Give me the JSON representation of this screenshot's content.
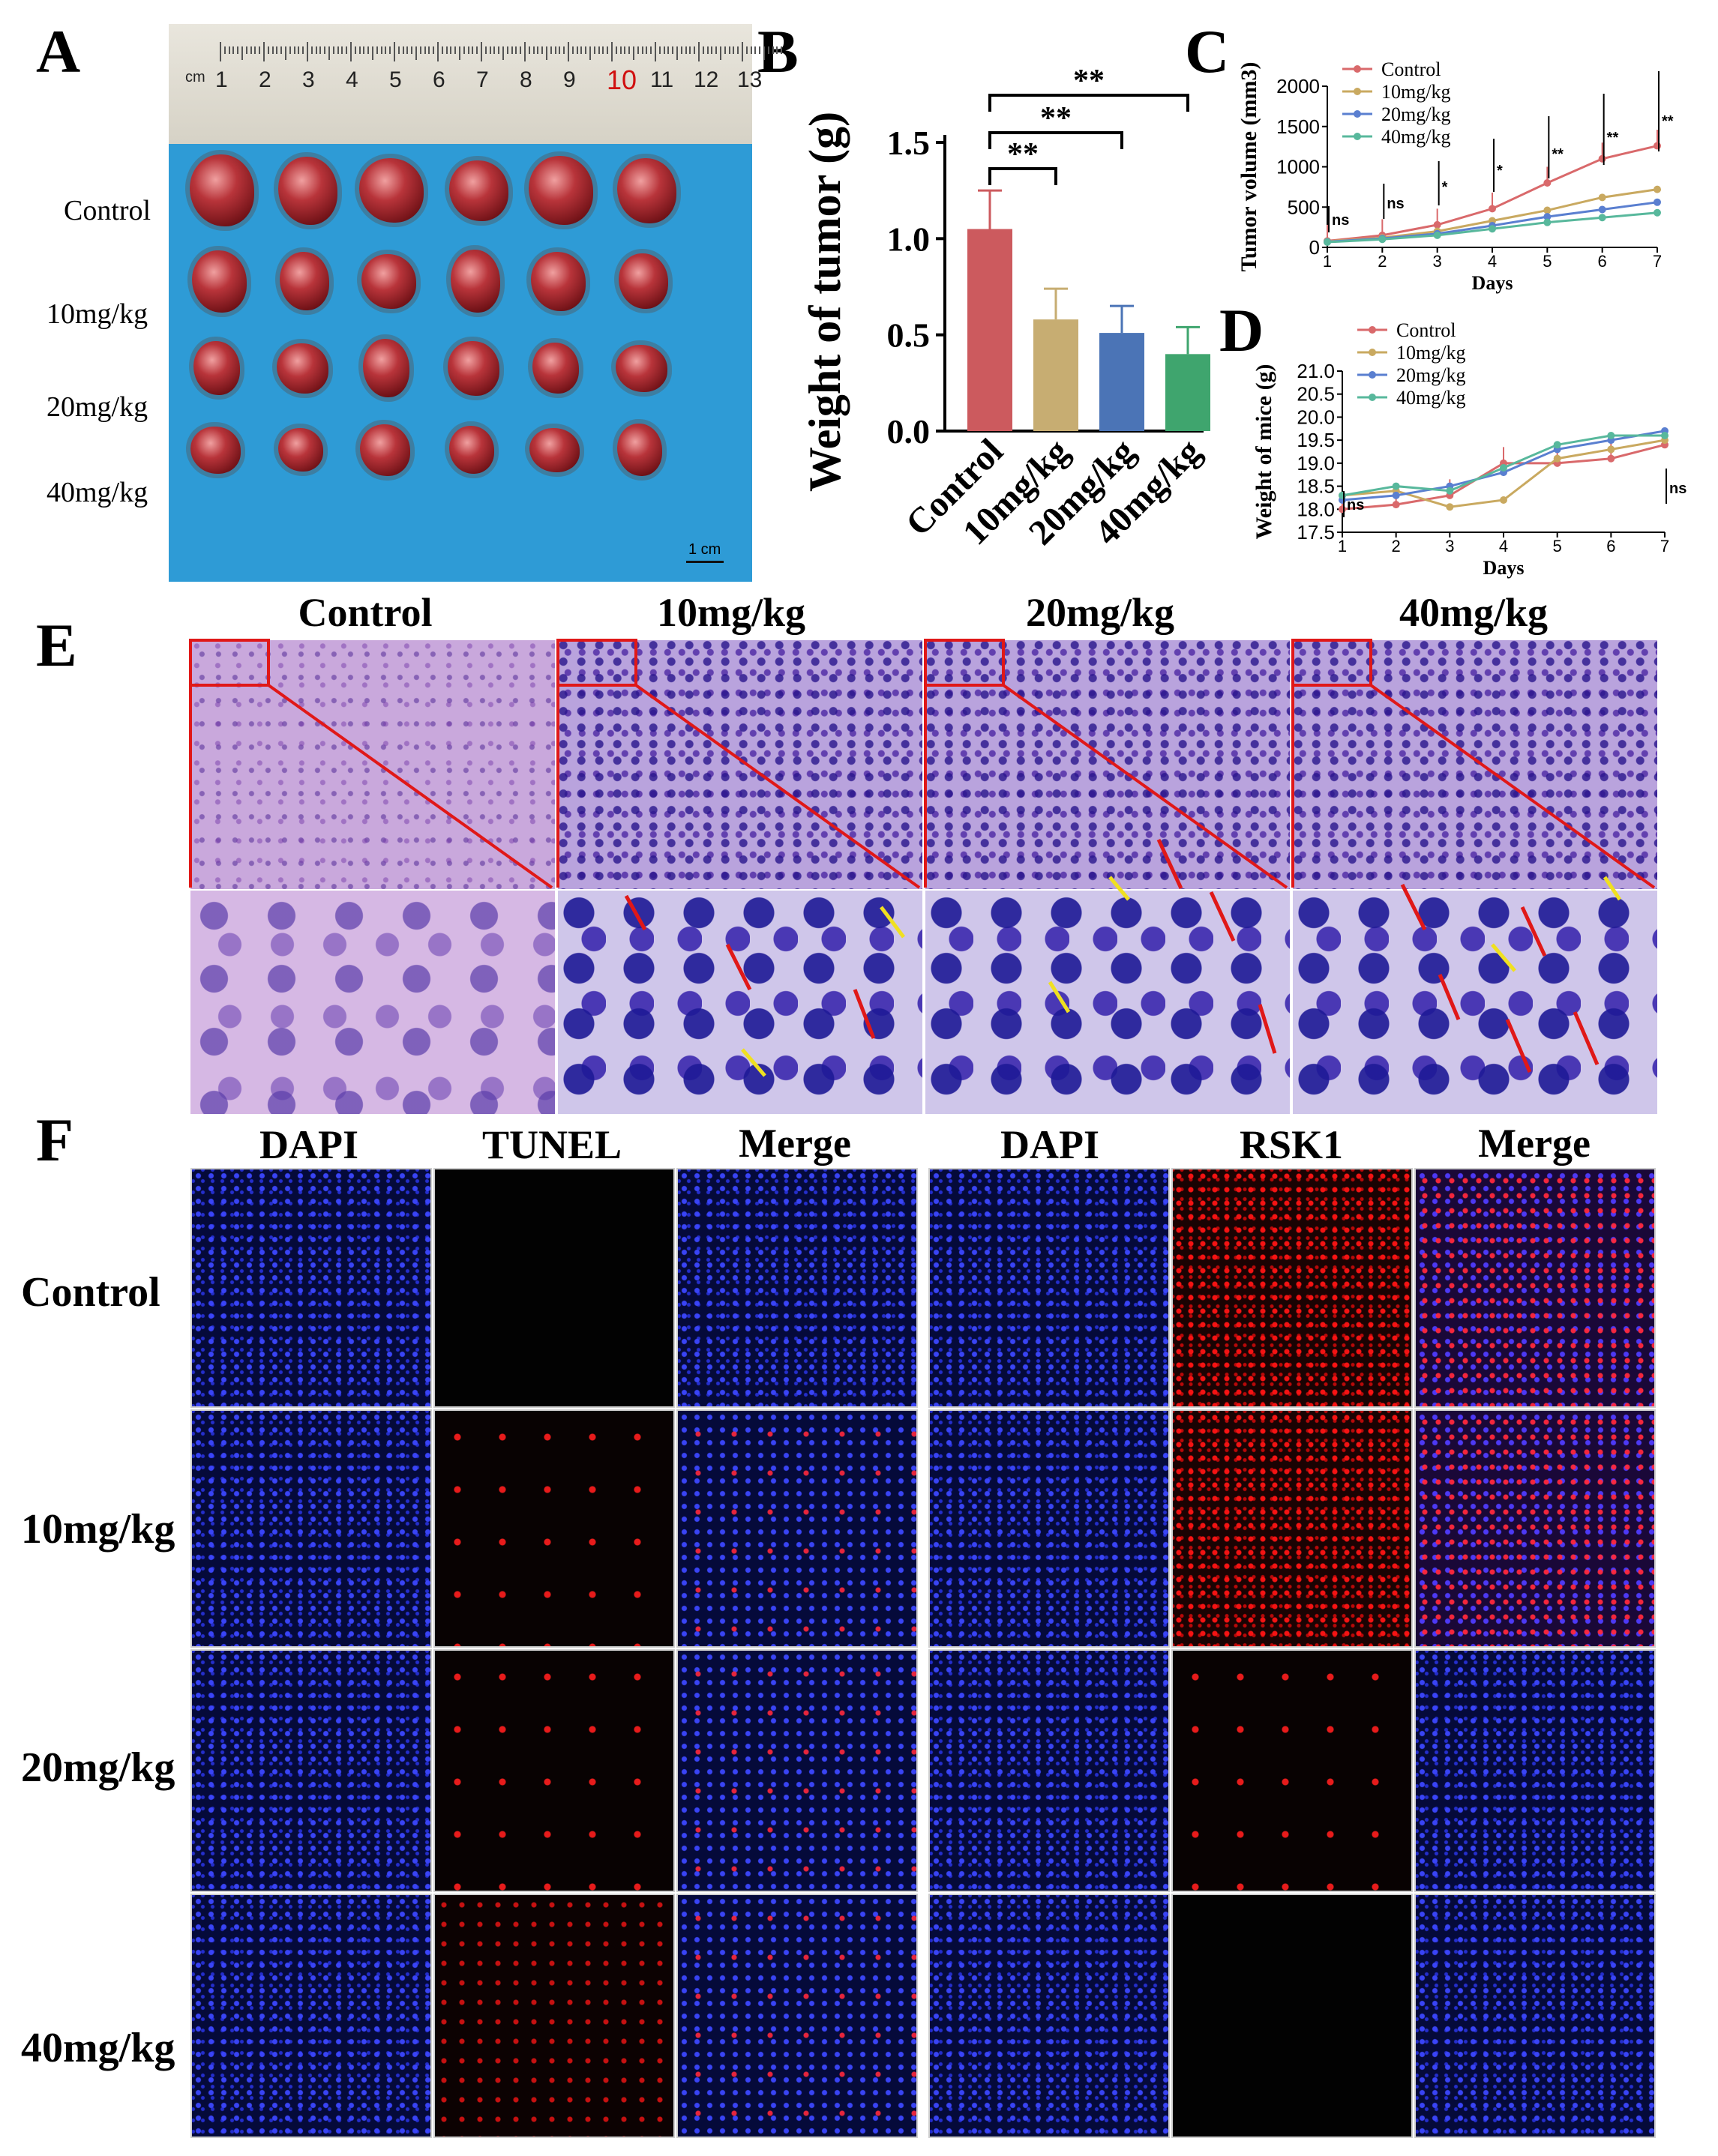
{
  "panel_letters": {
    "A": "A",
    "B": "B",
    "C": "C",
    "D": "D",
    "E": "E",
    "F": "F"
  },
  "panelA": {
    "ruler_cm_label": "cm",
    "ruler_numbers": [
      "1",
      "2",
      "3",
      "4",
      "5",
      "6",
      "7",
      "8",
      "9",
      "10",
      "11",
      "12",
      "13"
    ],
    "group_labels": [
      "Control",
      "10mg/kg",
      "20mg/kg",
      "40mg/kg"
    ],
    "scale_bar_label": "1 cm",
    "tumors_per_group": 6
  },
  "chart_data": [
    {
      "type": "bar",
      "panel": "B",
      "ylabel": "Weight of tumor (g)",
      "categories": [
        "Control",
        "10mg/kg",
        "20mg/kg",
        "40mg/kg"
      ],
      "values": [
        1.05,
        0.58,
        0.51,
        0.4
      ],
      "errors": [
        0.2,
        0.16,
        0.14,
        0.14
      ],
      "colors": [
        "#cc5a5e",
        "#c7ad72",
        "#4b74b6",
        "#3fa56e"
      ],
      "ylim": [
        0,
        1.5
      ],
      "yticks": [
        "0.0",
        "0.5",
        "1.0",
        "1.5"
      ],
      "significance": [
        "**",
        "**",
        "**"
      ]
    },
    {
      "type": "line",
      "panel": "C",
      "ylabel": "Tumor volume (mm3)",
      "xlabel": "Days",
      "x": [
        1,
        2,
        3,
        4,
        5,
        6,
        7
      ],
      "xticks": [
        "1",
        "2",
        "3",
        "4",
        "5",
        "6",
        "7"
      ],
      "yticks": [
        "0",
        "500",
        "1000",
        "1500",
        "2000"
      ],
      "ylim": [
        0,
        2000
      ],
      "series": [
        {
          "name": "Control",
          "values": [
            80,
            150,
            280,
            480,
            800,
            1100,
            1260
          ],
          "color": "#d9696b"
        },
        {
          "name": "10mg/kg",
          "values": [
            75,
            120,
            200,
            330,
            460,
            620,
            720
          ],
          "color": "#c9a960"
        },
        {
          "name": "20mg/kg",
          "values": [
            70,
            110,
            170,
            270,
            380,
            470,
            560
          ],
          "color": "#5a7fd0"
        },
        {
          "name": "40mg/kg",
          "values": [
            65,
            100,
            150,
            230,
            310,
            370,
            430
          ],
          "color": "#58b89c"
        }
      ],
      "annotations": [
        "ns",
        "ns",
        "*",
        "*",
        "**",
        "**",
        "**"
      ],
      "legend": "top-left"
    },
    {
      "type": "line",
      "panel": "D",
      "ylabel": "Weight of mice (g)",
      "xlabel": "Days",
      "x": [
        1,
        2,
        3,
        4,
        5,
        6,
        7
      ],
      "xticks": [
        "1",
        "2",
        "3",
        "4",
        "5",
        "6",
        "7"
      ],
      "yticks": [
        "17.5",
        "18.0",
        "18.5",
        "19.0",
        "19.5",
        "20.0",
        "20.5",
        "21.0"
      ],
      "ylim": [
        17.5,
        21.0
      ],
      "series": [
        {
          "name": "Control",
          "values": [
            18.0,
            18.1,
            18.3,
            19.0,
            19.0,
            19.1,
            19.4
          ],
          "color": "#d9696b"
        },
        {
          "name": "10mg/kg",
          "values": [
            18.3,
            18.4,
            18.05,
            18.2,
            19.1,
            19.3,
            19.5
          ],
          "color": "#c9a960"
        },
        {
          "name": "20mg/kg",
          "values": [
            18.2,
            18.3,
            18.5,
            18.8,
            19.3,
            19.5,
            19.7
          ],
          "color": "#5a7fd0"
        },
        {
          "name": "40mg/kg",
          "values": [
            18.3,
            18.5,
            18.4,
            18.9,
            19.4,
            19.6,
            19.6
          ],
          "color": "#58b89c"
        }
      ],
      "annotations": [
        "ns",
        "ns"
      ],
      "legend": "top-left"
    }
  ],
  "panelE": {
    "headers": [
      "Control",
      "10mg/kg",
      "20mg/kg",
      "40mg/kg"
    ]
  },
  "panelF": {
    "headers_left": [
      "DAPI",
      "TUNEL",
      "Merge"
    ],
    "headers_right": [
      "DAPI",
      "RSK1",
      "Merge"
    ],
    "row_labels": [
      "Control",
      "10mg/kg",
      "20mg/kg",
      "40mg/kg"
    ]
  }
}
